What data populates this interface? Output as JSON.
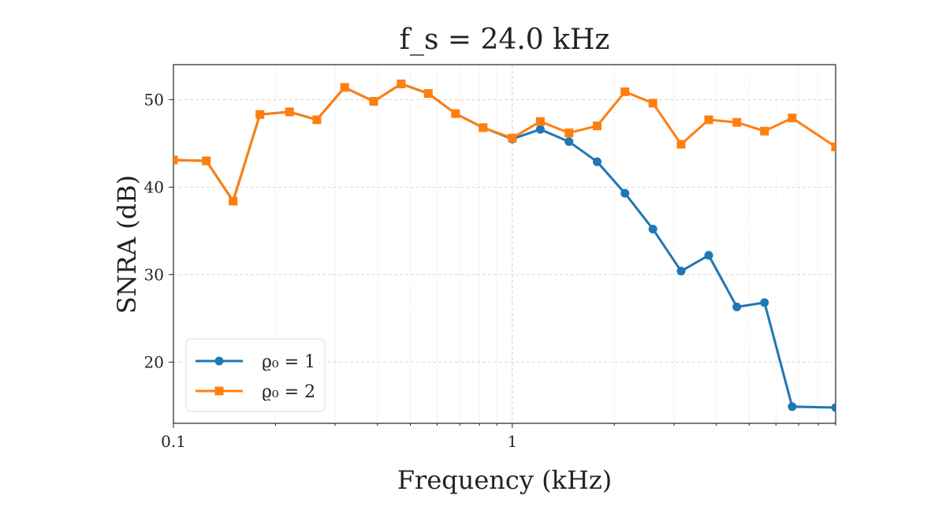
{
  "chart_data": {
    "type": "line",
    "title": "f_s = 24.0 kHz",
    "xlabel": "Frequency (kHz)",
    "ylabel": "SNRA (dB)",
    "xscale": "log",
    "xlim": [
      0.1,
      9.0
    ],
    "ylim": [
      13.0,
      54.0
    ],
    "xticks": [
      0.1,
      1
    ],
    "xtick_labels": [
      "0.1",
      "1"
    ],
    "yticks": [
      20,
      30,
      40,
      50
    ],
    "ytick_labels": [
      "20",
      "30",
      "40",
      "50"
    ],
    "grid": true,
    "legend_position": "lower-left",
    "x": [
      0.1,
      0.125,
      0.15,
      0.18,
      0.22,
      0.265,
      0.32,
      0.39,
      0.47,
      0.565,
      0.68,
      0.82,
      1.0,
      1.21,
      1.47,
      1.78,
      2.15,
      2.6,
      3.15,
      3.8,
      4.6,
      5.55,
      6.7,
      9.0
    ],
    "series": [
      {
        "name": "ϱ₀ = 1",
        "color": "#1f77b4",
        "marker": "circle",
        "values": [
          43.1,
          43.0,
          38.4,
          48.3,
          48.6,
          47.7,
          51.4,
          49.8,
          51.8,
          50.7,
          48.4,
          46.8,
          45.5,
          46.6,
          45.2,
          42.9,
          39.3,
          35.2,
          30.4,
          32.2,
          26.3,
          26.8,
          14.9,
          14.8
        ]
      },
      {
        "name": "ϱ₀ = 2",
        "color": "#ff7f0e",
        "marker": "square",
        "values": [
          43.1,
          43.0,
          38.4,
          48.3,
          48.6,
          47.7,
          51.4,
          49.8,
          51.8,
          50.7,
          48.4,
          46.8,
          45.6,
          47.5,
          46.2,
          47.0,
          50.9,
          49.6,
          44.9,
          47.7,
          47.4,
          46.4,
          47.9,
          44.6
        ]
      }
    ]
  }
}
